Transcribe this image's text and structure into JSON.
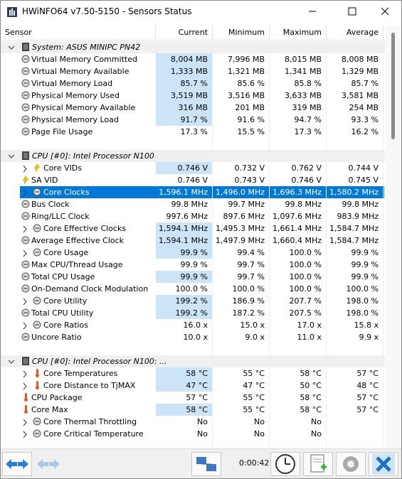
{
  "window": {
    "title": "HWiNFO64 v7.50-5150 - Sensors Status"
  },
  "columns": [
    "Sensor",
    "Current",
    "Minimum",
    "Maximum",
    "Average"
  ],
  "groups": [
    {
      "title": "System: ASUS MINIPC PN42",
      "rows": [
        {
          "cells": [
            "Virtual Memory Committed",
            "8,004 MB",
            "7,996 MB",
            "8,015 MB",
            "8,008 MB"
          ],
          "icon": "gauge",
          "highlight": true
        },
        {
          "cells": [
            "Virtual Memory Available",
            "1,333 MB",
            "1,321 MB",
            "1,341 MB",
            "1,329 MB"
          ],
          "icon": "gauge",
          "highlight": true
        },
        {
          "cells": [
            "Virtual Memory Load",
            "85.7 %",
            "85.6 %",
            "85.8 %",
            "85.7 %"
          ],
          "icon": "gauge",
          "highlight": true
        },
        {
          "cells": [
            "Physical Memory Used",
            "3,519 MB",
            "3,516 MB",
            "3,633 MB",
            "3,581 MB"
          ],
          "icon": "gauge",
          "highlight": true
        },
        {
          "cells": [
            "Physical Memory Available",
            "316 MB",
            "201 MB",
            "319 MB",
            "254 MB"
          ],
          "icon": "gauge",
          "highlight": true
        },
        {
          "cells": [
            "Physical Memory Load",
            "91.7 %",
            "91.6 %",
            "94.7 %",
            "93.3 %"
          ],
          "icon": "gauge",
          "highlight": true
        },
        {
          "cells": [
            "Page File Usage",
            "17.3 %",
            "15.5 %",
            "17.3 %",
            "16.2 %"
          ],
          "icon": "gauge"
        }
      ]
    },
    {
      "title": "CPU [#0]: Intel Processor N100",
      "rows": [
        {
          "cells": [
            "Core VIDs",
            "0.746 V",
            "0.732 V",
            "0.762 V",
            "0.744 V"
          ],
          "icon": "bolt",
          "expand": true,
          "highlight": true
        },
        {
          "cells": [
            "SA VID",
            "0.746 V",
            "0.743 V",
            "0.746 V",
            "0.745 V"
          ],
          "icon": "bolt"
        },
        {
          "cells": [
            "Core Clocks",
            "1,596.1 MHz",
            "1,496.0 MHz",
            "1,696.3 MHz",
            "1,580.2 MHz"
          ],
          "icon": "gauge",
          "expand": true,
          "selected": true
        },
        {
          "cells": [
            "Bus Clock",
            "99.8 MHz",
            "99.7 MHz",
            "99.8 MHz",
            "99.8 MHz"
          ],
          "icon": "gauge"
        },
        {
          "cells": [
            "Ring/LLC Clock",
            "997.6 MHz",
            "897.6 MHz",
            "1,097.6 MHz",
            "983.9 MHz"
          ],
          "icon": "gauge"
        },
        {
          "cells": [
            "Core Effective Clocks",
            "1,594.1 MHz",
            "1,495.3 MHz",
            "1,661.4 MHz",
            "1,584.7 MHz"
          ],
          "icon": "gauge",
          "expand": true,
          "highlight": true
        },
        {
          "cells": [
            "Average Effective Clock",
            "1,594.1 MHz",
            "1,497.9 MHz",
            "1,660.4 MHz",
            "1,584.7 MHz"
          ],
          "icon": "gauge",
          "highlight": true
        },
        {
          "cells": [
            "Core Usage",
            "99.9 %",
            "99.4 %",
            "100.0 %",
            "99.9 %"
          ],
          "icon": "gauge",
          "expand": true,
          "highlight": true
        },
        {
          "cells": [
            "Max CPU/Thread Usage",
            "99.9 %",
            "99.7 %",
            "100.0 %",
            "99.9 %"
          ],
          "icon": "gauge"
        },
        {
          "cells": [
            "Total CPU Usage",
            "99.9 %",
            "99.7 %",
            "100.0 %",
            "99.9 %"
          ],
          "icon": "gauge",
          "highlight": true
        },
        {
          "cells": [
            "On-Demand Clock Modulation",
            "100.0 %",
            "100.0 %",
            "100.0 %",
            "100.0 %"
          ],
          "icon": "gauge"
        },
        {
          "cells": [
            "Core Utility",
            "199.2 %",
            "186.9 %",
            "207.7 %",
            "198.0 %"
          ],
          "icon": "gauge",
          "expand": true,
          "highlight": true
        },
        {
          "cells": [
            "Total CPU Utility",
            "199.2 %",
            "187.2 %",
            "207.5 %",
            "198.0 %"
          ],
          "icon": "gauge",
          "highlight": true
        },
        {
          "cells": [
            "Core Ratios",
            "16.0 x",
            "15.0 x",
            "17.0 x",
            "15.8 x"
          ],
          "icon": "gauge",
          "expand": true
        },
        {
          "cells": [
            "Uncore Ratio",
            "10.0 x",
            "9.0 x",
            "11.0 x",
            "9.9 x"
          ],
          "icon": "gauge"
        }
      ]
    },
    {
      "title": "CPU [#0]: Intel Processor N100: ...",
      "rows": [
        {
          "cells": [
            "Core Temperatures",
            "58 °C",
            "55 °C",
            "58 °C",
            "57 °C"
          ],
          "icon": "thermo",
          "expand": true,
          "highlight": true
        },
        {
          "cells": [
            "Core Distance to TjMAX",
            "47 °C",
            "47 °C",
            "50 °C",
            "48 °C"
          ],
          "icon": "thermo",
          "expand": true,
          "highlight": true
        },
        {
          "cells": [
            "CPU Package",
            "57 °C",
            "55 °C",
            "58 °C",
            "57 °C"
          ],
          "icon": "thermo"
        },
        {
          "cells": [
            "Core Max",
            "58 °C",
            "55 °C",
            "58 °C",
            "57 °C"
          ],
          "icon": "thermo",
          "highlight": true
        },
        {
          "cells": [
            "Core Thermal Throttling",
            "No",
            "No",
            "No",
            ""
          ],
          "icon": "gauge",
          "expand": true
        },
        {
          "cells": [
            "Core Critical Temperature",
            "No",
            "No",
            "No",
            ""
          ],
          "icon": "gauge",
          "expand": true
        }
      ]
    }
  ],
  "footer": {
    "time": "0:00:42"
  }
}
